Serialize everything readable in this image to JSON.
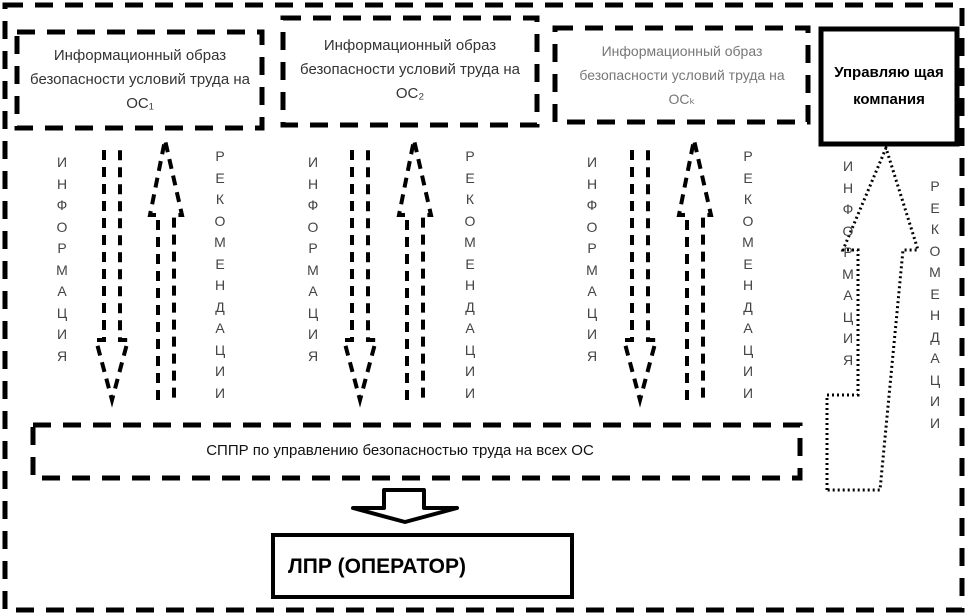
{
  "diagram": {
    "boxes": {
      "info_image_1": "Информационный образ безопасности условий труда на ОС₁",
      "info_image_2": "Информационный образ безопасности условий труда на ОС₂",
      "info_image_k": "Информационный образ безопасности условий труда на ОСₖ",
      "management_company": "Управляю щая компания",
      "dss": "СППР по управлению безопасностью труда на всех ОС",
      "decision_maker": "ЛПР (ОПЕРАТОР)"
    },
    "arrow_labels": {
      "information": "ИНФОРМАЦИЯ",
      "recommendations": "РЕКОМЕНДАЦИИ"
    }
  }
}
